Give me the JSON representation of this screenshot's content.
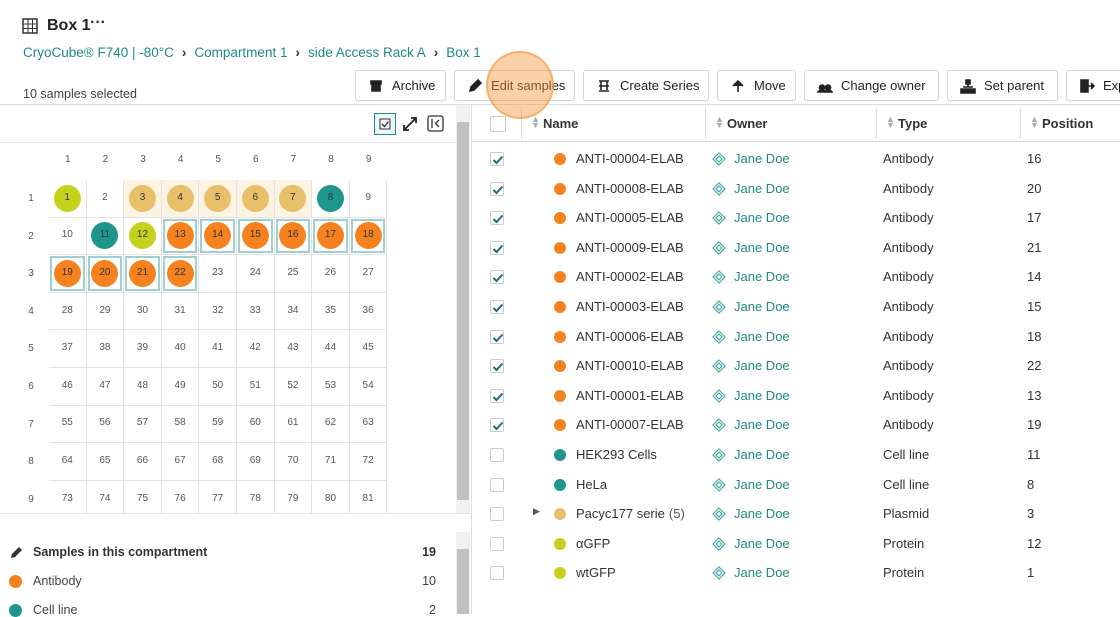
{
  "header": {
    "title": "Box 1",
    "breadcrumb": [
      "CryoCube® F740 | -80°C",
      "Compartment 1",
      "side Access Rack A",
      "Box 1"
    ],
    "selection": "10 samples selected"
  },
  "toolbar": [
    "Archive",
    "Edit samples",
    "Create Series",
    "Move",
    "Change owner",
    "Set parent",
    "Exp"
  ],
  "grid": {
    "columns": [
      1,
      2,
      3,
      4,
      5,
      6,
      7,
      8,
      9
    ],
    "rows": [
      1,
      2,
      3,
      4,
      5,
      6,
      7,
      8,
      9
    ],
    "cells": [
      {
        "label": 1,
        "color": "#c5d21c"
      },
      {
        "label": 2
      },
      {
        "label": 3,
        "color": "#e8c06a",
        "highlight": true
      },
      {
        "label": 4,
        "color": "#e8c06a",
        "highlight": true
      },
      {
        "label": 5,
        "color": "#e8c06a",
        "highlight": true
      },
      {
        "label": 6,
        "color": "#e8c06a",
        "highlight": true
      },
      {
        "label": 7,
        "color": "#e8c06a",
        "highlight": true
      },
      {
        "label": 8,
        "color": "#1f968c"
      },
      {
        "label": 9
      },
      {
        "label": 10
      },
      {
        "label": 11,
        "color": "#1f968c"
      },
      {
        "label": 12,
        "color": "#c5d21c"
      },
      {
        "label": 13,
        "color": "#f5821f",
        "selected": true
      },
      {
        "label": 14,
        "color": "#f5821f",
        "selected": true
      },
      {
        "label": 15,
        "color": "#f5821f",
        "selected": true
      },
      {
        "label": 16,
        "color": "#f5821f",
        "selected": true
      },
      {
        "label": 17,
        "color": "#f5821f",
        "selected": true
      },
      {
        "label": 18,
        "color": "#f5821f",
        "selected": true
      },
      {
        "label": 19,
        "color": "#f5821f",
        "selected": true
      },
      {
        "label": 20,
        "color": "#f5821f",
        "selected": true
      },
      {
        "label": 21,
        "color": "#f5821f",
        "selected": true
      },
      {
        "label": 22,
        "color": "#f5821f",
        "selected": true
      },
      {
        "label": 23
      },
      {
        "label": 24
      },
      {
        "label": 25
      },
      {
        "label": 26
      },
      {
        "label": 27
      },
      {
        "label": 28
      },
      {
        "label": 29
      },
      {
        "label": 30
      },
      {
        "label": 31
      },
      {
        "label": 32
      },
      {
        "label": 33
      },
      {
        "label": 34
      },
      {
        "label": 35
      },
      {
        "label": 36
      },
      {
        "label": 37
      },
      {
        "label": 38
      },
      {
        "label": 39
      },
      {
        "label": 40
      },
      {
        "label": 41
      },
      {
        "label": 42
      },
      {
        "label": 43
      },
      {
        "label": 44
      },
      {
        "label": 45
      },
      {
        "label": 46
      },
      {
        "label": 47
      },
      {
        "label": 48
      },
      {
        "label": 49
      },
      {
        "label": 50
      },
      {
        "label": 51
      },
      {
        "label": 52
      },
      {
        "label": 53
      },
      {
        "label": 54
      },
      {
        "label": 55
      },
      {
        "label": 56
      },
      {
        "label": 57
      },
      {
        "label": 58
      },
      {
        "label": 59
      },
      {
        "label": 60
      },
      {
        "label": 61
      },
      {
        "label": 62
      },
      {
        "label": 63
      },
      {
        "label": 64
      },
      {
        "label": 65
      },
      {
        "label": 66
      },
      {
        "label": 67
      },
      {
        "label": 68
      },
      {
        "label": 69
      },
      {
        "label": 70
      },
      {
        "label": 71
      },
      {
        "label": 72
      },
      {
        "label": 73
      },
      {
        "label": 74
      },
      {
        "label": 75
      },
      {
        "label": 76
      },
      {
        "label": 77
      },
      {
        "label": 78
      },
      {
        "label": 79
      },
      {
        "label": 80
      },
      {
        "label": 81
      }
    ]
  },
  "summary": {
    "title": "Samples in this compartment",
    "total": 19,
    "items": [
      {
        "name": "Antibody",
        "count": 10,
        "color": "#f5821f"
      },
      {
        "name": "Cell line",
        "count": 2,
        "color": "#1f968c"
      }
    ]
  },
  "table": {
    "columns": [
      "Name",
      "Owner",
      "Type",
      "Position"
    ],
    "rows": [
      {
        "checked": true,
        "color": "#f5821f",
        "name": "ANTI-00004-ELAB",
        "owner": "Jane Doe",
        "type": "Antibody",
        "position": 16
      },
      {
        "checked": true,
        "color": "#f5821f",
        "name": "ANTI-00008-ELAB",
        "owner": "Jane Doe",
        "type": "Antibody",
        "position": 20
      },
      {
        "checked": true,
        "color": "#f5821f",
        "name": "ANTI-00005-ELAB",
        "owner": "Jane Doe",
        "type": "Antibody",
        "position": 17
      },
      {
        "checked": true,
        "color": "#f5821f",
        "name": "ANTI-00009-ELAB",
        "owner": "Jane Doe",
        "type": "Antibody",
        "position": 21
      },
      {
        "checked": true,
        "color": "#f5821f",
        "name": "ANTI-00002-ELAB",
        "owner": "Jane Doe",
        "type": "Antibody",
        "position": 14
      },
      {
        "checked": true,
        "color": "#f5821f",
        "name": "ANTI-00003-ELAB",
        "owner": "Jane Doe",
        "type": "Antibody",
        "position": 15
      },
      {
        "checked": true,
        "color": "#f5821f",
        "name": "ANTI-00006-ELAB",
        "owner": "Jane Doe",
        "type": "Antibody",
        "position": 18
      },
      {
        "checked": true,
        "color": "#f5821f",
        "name": "ANTI-00010-ELAB",
        "owner": "Jane Doe",
        "type": "Antibody",
        "position": 22
      },
      {
        "checked": true,
        "color": "#f5821f",
        "name": "ANTI-00001-ELAB",
        "owner": "Jane Doe",
        "type": "Antibody",
        "position": 13
      },
      {
        "checked": true,
        "color": "#f5821f",
        "name": "ANTI-00007-ELAB",
        "owner": "Jane Doe",
        "type": "Antibody",
        "position": 19
      },
      {
        "checked": false,
        "color": "#1f968c",
        "name": "HEK293 Cells",
        "owner": "Jane Doe",
        "type": "Cell line",
        "position": 11
      },
      {
        "checked": false,
        "color": "#1f968c",
        "name": "HeLa",
        "owner": "Jane Doe",
        "type": "Cell line",
        "position": 8
      },
      {
        "checked": false,
        "color": "#e8c06a",
        "name": "Pacyc177 serie",
        "count": {
          "value": 5,
          "label": "(5)"
        },
        "owner": "Jane Doe",
        "type": "Plasmid",
        "position": 3
      },
      {
        "checked": false,
        "color": "#c5d21c",
        "name": "αGFP",
        "owner": "Jane Doe",
        "type": "Protein",
        "position": 12
      },
      {
        "checked": false,
        "color": "#c5d21c",
        "name": "wtGFP",
        "owner": "Jane Doe",
        "type": "Protein",
        "position": 1
      }
    ]
  }
}
